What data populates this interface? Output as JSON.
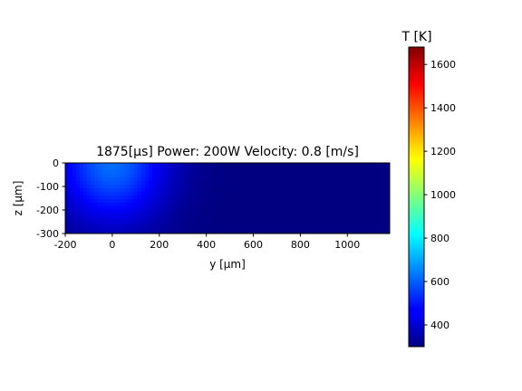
{
  "chart_data": {
    "type": "heatmap",
    "title": "1875[μs] Power: 200W Velocity: 0.8 [m/s]",
    "xlabel": "y [μm]",
    "ylabel": "z [μm]",
    "xlim": [
      -200,
      1180
    ],
    "ylim": [
      -300,
      0
    ],
    "x_ticks": [
      "-200",
      "0",
      "200",
      "400",
      "600",
      "800",
      "1000"
    ],
    "y_ticks": [
      "0",
      "-100",
      "-200",
      "-300"
    ],
    "heat_source": {
      "center_x": 0,
      "center_z": 0
    },
    "temperature_field": {
      "peak": 620,
      "ambient": 300,
      "radius_x": 230,
      "radius_z": 250
    },
    "colorbar": {
      "label": "T [K]",
      "colormap": "jet",
      "range": [
        300,
        1680
      ],
      "ticks": [
        "400",
        "600",
        "800",
        "1000",
        "1200",
        "1400",
        "1600"
      ]
    },
    "grid": false
  }
}
